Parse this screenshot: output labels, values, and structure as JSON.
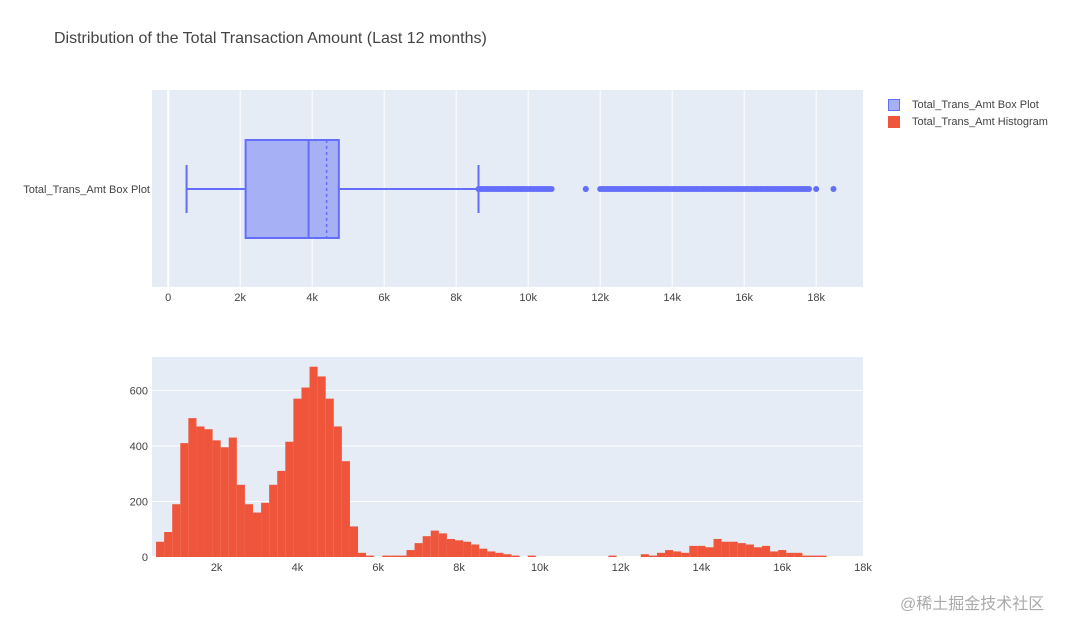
{
  "title": "Distribution of the Total Transaction Amount (Last 12 months)",
  "watermark": "@稀土掘金技术社区",
  "colors": {
    "plot_bg": "#e5ecf6",
    "grid": "#ffffff",
    "box_fill": "#a5b0f5",
    "box_line": "#636efa",
    "histogram": "#ef553b",
    "axis_text": "#444444"
  },
  "legend": [
    {
      "label": "Total_Trans_Amt Box Plot",
      "color": "#636efa",
      "kind": "box"
    },
    {
      "label": "Total_Trans_Amt Histogram",
      "color": "#ef553b",
      "kind": "bar"
    }
  ],
  "chart_data": [
    {
      "type": "box",
      "series_label": "Total_Trans_Amt Box Plot",
      "orientation": "horizontal",
      "lower_fence": 510,
      "q1": 2150,
      "median": 3900,
      "mean": 4400,
      "q3": 4740,
      "upper_fence": 8620,
      "outlier_ranges": [
        [
          8620,
          10650
        ],
        [
          11600,
          11600
        ],
        [
          12000,
          17800
        ]
      ],
      "outlier_isolated": [
        18000,
        18480
      ],
      "xlim": [
        -450,
        19300
      ],
      "xticks": [
        0,
        2000,
        4000,
        6000,
        8000,
        10000,
        12000,
        14000,
        16000,
        18000
      ],
      "xtick_labels": [
        "0",
        "2k",
        "4k",
        "6k",
        "8k",
        "10k",
        "12k",
        "14k",
        "16k",
        "18k"
      ],
      "grid": true
    },
    {
      "type": "bar",
      "series_label": "Total_Trans_Amt Histogram",
      "bin_start": 500,
      "bin_width": 200,
      "counts": [
        55,
        90,
        190,
        410,
        500,
        470,
        460,
        420,
        395,
        430,
        260,
        190,
        160,
        195,
        260,
        310,
        415,
        570,
        610,
        685,
        650,
        570,
        470,
        345,
        110,
        15,
        5,
        0,
        5,
        5,
        5,
        25,
        50,
        75,
        95,
        85,
        65,
        60,
        55,
        45,
        30,
        20,
        15,
        10,
        5,
        0,
        5,
        0,
        0,
        0,
        0,
        0,
        0,
        0,
        0,
        0,
        5,
        0,
        0,
        0,
        10,
        5,
        15,
        25,
        20,
        15,
        40,
        40,
        35,
        65,
        55,
        55,
        50,
        45,
        35,
        40,
        20,
        25,
        15,
        15,
        5,
        5,
        5,
        0
      ],
      "xlim": [
        400,
        18000
      ],
      "ylim": [
        0,
        720
      ],
      "xticks": [
        2000,
        4000,
        6000,
        8000,
        10000,
        12000,
        14000,
        16000,
        18000
      ],
      "xtick_labels": [
        "2k",
        "4k",
        "6k",
        "8k",
        "10k",
        "12k",
        "14k",
        "16k",
        "18k"
      ],
      "yticks": [
        0,
        200,
        400,
        600
      ],
      "ytick_labels": [
        "0",
        "200",
        "400",
        "600"
      ],
      "grid": true
    }
  ]
}
